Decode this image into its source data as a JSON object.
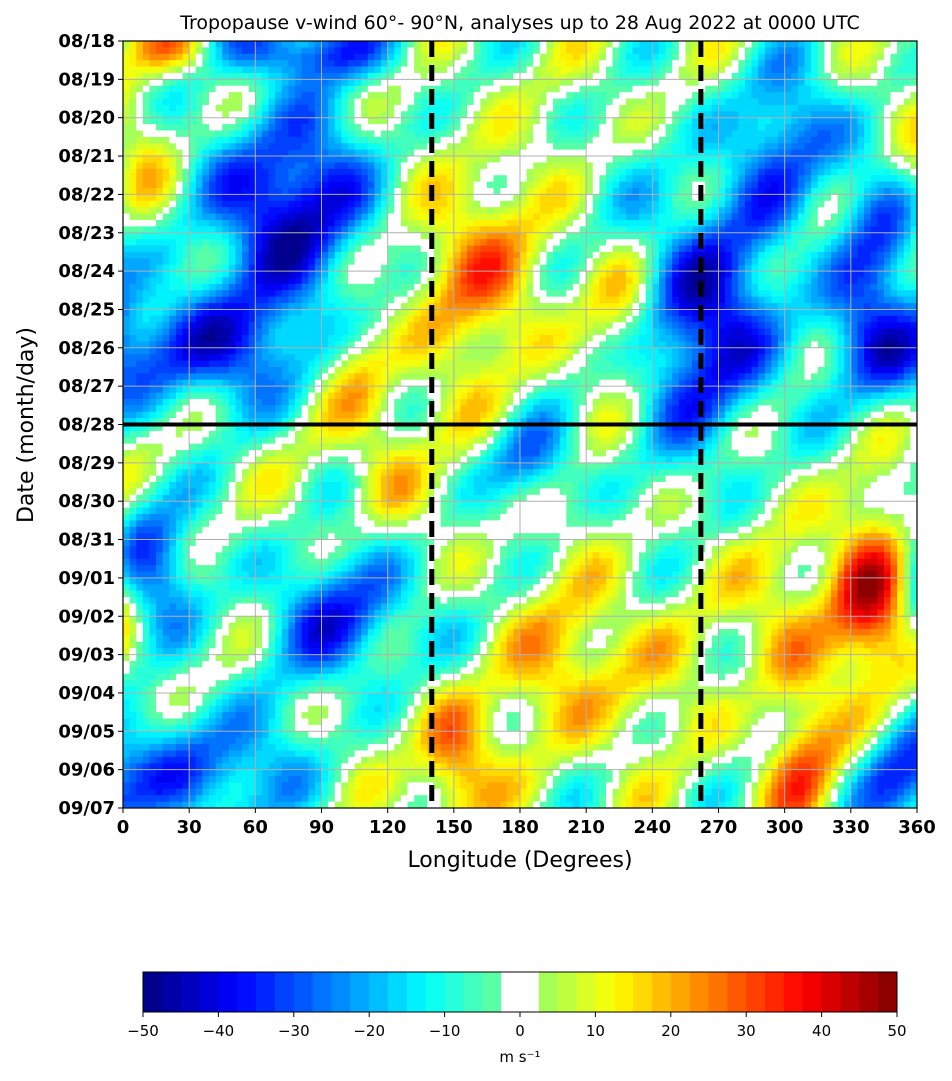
{
  "chart_data": {
    "type": "heatmap",
    "title": "Tropopause v-wind 60°- 90°N, analyses up to 28 Aug 2022 at 0000 UTC",
    "xlabel": "Longitude (Degrees)",
    "ylabel": "Date (month/day)",
    "x_ticks": [
      "0",
      "30",
      "60",
      "90",
      "120",
      "150",
      "180",
      "210",
      "240",
      "270",
      "300",
      "330",
      "360"
    ],
    "xlim": [
      0,
      360
    ],
    "y_ticks": [
      "08/18",
      "08/19",
      "08/20",
      "08/21",
      "08/22",
      "08/23",
      "08/24",
      "08/25",
      "08/26",
      "08/27",
      "08/28",
      "08/29",
      "08/30",
      "08/31",
      "09/01",
      "09/02",
      "09/03",
      "09/04",
      "09/05",
      "09/06",
      "09/07"
    ],
    "grid": true,
    "analysis_cutoff_date": "08/28",
    "dashed_longitudes": [
      140,
      262
    ],
    "colorbar": {
      "label": "m s⁻¹",
      "range": [
        -50,
        50
      ],
      "ticks": [
        "−50",
        "−40",
        "−30",
        "−20",
        "−10",
        "0",
        "10",
        "20",
        "30",
        "40",
        "50"
      ],
      "white_band": [
        -2.5,
        2.5
      ],
      "colormap": "jet"
    },
    "features": [
      {
        "lon": 75,
        "day": 4.3,
        "value": -42,
        "rx": 32,
        "ry": 1.8
      },
      {
        "lon": 30,
        "day": 8.0,
        "value": -34,
        "rx": 45,
        "ry": 1.1
      },
      {
        "lon": 262,
        "day": 7.2,
        "value": -40,
        "rx": 26,
        "ry": 2.4
      },
      {
        "lon": 80,
        "day": 0.2,
        "value": -32,
        "rx": 30,
        "ry": 0.6
      },
      {
        "lon": 340,
        "day": 5.5,
        "value": -28,
        "rx": 14,
        "ry": 2.0
      },
      {
        "lon": 12,
        "day": 13.5,
        "value": -32,
        "rx": 14,
        "ry": 1.3
      },
      {
        "lon": 100,
        "day": 15.0,
        "value": -30,
        "rx": 28,
        "ry": 1.3
      },
      {
        "lon": 40,
        "day": 19.0,
        "value": -30,
        "rx": 28,
        "ry": 1.2
      },
      {
        "lon": 185,
        "day": 11.0,
        "value": -24,
        "rx": 14,
        "ry": 0.8
      },
      {
        "lon": 300,
        "day": 2.5,
        "value": -26,
        "rx": 18,
        "ry": 1.5
      },
      {
        "lon": 350,
        "day": 19.5,
        "value": -26,
        "rx": 14,
        "ry": 1.0
      },
      {
        "lon": 155,
        "day": 6.0,
        "value": 25,
        "rx": 22,
        "ry": 2.0
      },
      {
        "lon": 340,
        "day": 14.5,
        "value": 36,
        "rx": 14,
        "ry": 1.8
      },
      {
        "lon": 150,
        "day": 18.8,
        "value": 28,
        "rx": 12,
        "ry": 1.2
      },
      {
        "lon": 308,
        "day": 19.0,
        "value": 26,
        "rx": 12,
        "ry": 1.2
      },
      {
        "lon": 225,
        "day": 7.0,
        "value": 24,
        "rx": 14,
        "ry": 1.2
      },
      {
        "lon": 25,
        "day": 0.2,
        "value": 26,
        "rx": 14,
        "ry": 0.5
      },
      {
        "lon": 10,
        "day": 3.5,
        "value": 18,
        "rx": 14,
        "ry": 1.5
      },
      {
        "lon": 105,
        "day": 8.5,
        "value": 20,
        "rx": 12,
        "ry": 1.0
      },
      {
        "lon": 210,
        "day": 16.3,
        "value": 18,
        "rx": 30,
        "ry": 1.5
      },
      {
        "lon": 300,
        "day": 15.0,
        "value": 18,
        "rx": 14,
        "ry": 1.5
      },
      {
        "lon": 120,
        "day": 11.0,
        "value": 14,
        "rx": 12,
        "ry": 1.2
      }
    ]
  }
}
